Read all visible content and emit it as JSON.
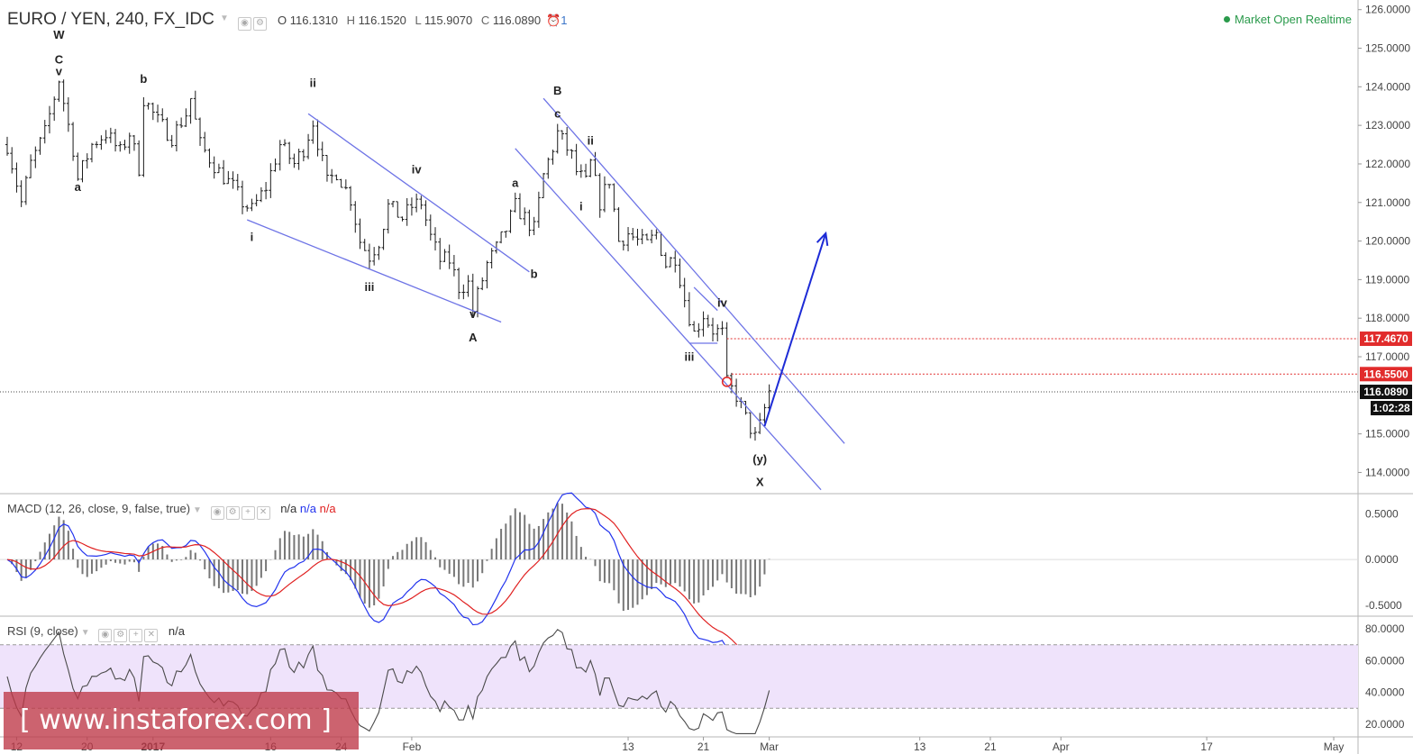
{
  "header": {
    "symbol_label": "EURO / YEN, 240, FX_IDC",
    "ohlc": {
      "o_label": "O",
      "o": "116.1310",
      "h_label": "H",
      "h": "116.1520",
      "l_label": "L",
      "l": "115.9070",
      "c_label": "C",
      "c": "116.0890"
    },
    "alerts_count": "1",
    "status": "Market Open Realtime"
  },
  "colors": {
    "candle": "#1a1a1a",
    "channel": "#6e74e6",
    "arrow": "#1d2bd6",
    "level_red": "#e12c2c",
    "macd_line": "#2233ee",
    "signal_line": "#e02020",
    "hist": "#777777",
    "rsi_line": "#4a4a4a",
    "rsi_band": "#efe3fb"
  },
  "price_axis": {
    "ticks": [
      "126.0000",
      "125.0000",
      "124.0000",
      "123.0000",
      "122.0000",
      "121.0000",
      "120.0000",
      "119.0000",
      "118.0000",
      "117.0000",
      "115.0000",
      "114.0000"
    ],
    "tick_values": [
      126,
      125,
      124,
      123,
      122,
      121,
      120,
      119,
      118,
      117,
      115,
      114
    ],
    "price_range": [
      113.45,
      126.25
    ],
    "current_price": "116.0890",
    "countdown": "1:02:28",
    "levels": [
      {
        "label": "117.4670",
        "value": 117.467
      },
      {
        "label": "116.5500",
        "value": 116.55
      }
    ]
  },
  "time_axis": {
    "labels": [
      "12",
      "20",
      "2017",
      "16",
      "24",
      "Feb",
      "13",
      "21",
      "Mar",
      "13",
      "21",
      "Apr",
      "17",
      "May"
    ],
    "bar_index": [
      2,
      17,
      31,
      56,
      71,
      86,
      132,
      148,
      162,
      194,
      209,
      224,
      255,
      282
    ]
  },
  "wave_labels": [
    {
      "text": "W",
      "bar": 11,
      "price": 125.25
    },
    {
      "text": "C",
      "bar": 11,
      "price": 124.6
    },
    {
      "text": "v",
      "bar": 11,
      "price": 124.3
    },
    {
      "text": "a",
      "bar": 15,
      "price": 121.3
    },
    {
      "text": "b",
      "bar": 29,
      "price": 124.1
    },
    {
      "text": "i",
      "bar": 52,
      "price": 120.0
    },
    {
      "text": "ii",
      "bar": 65,
      "price": 124.0
    },
    {
      "text": "iii",
      "bar": 77,
      "price": 118.7
    },
    {
      "text": "iv",
      "bar": 87,
      "price": 121.75
    },
    {
      "text": "v",
      "bar": 99,
      "price": 118.0
    },
    {
      "text": "A",
      "bar": 99,
      "price": 117.4
    },
    {
      "text": "a",
      "bar": 108,
      "price": 121.4
    },
    {
      "text": "b",
      "bar": 112,
      "price": 119.05
    },
    {
      "text": "B",
      "bar": 117,
      "price": 123.8
    },
    {
      "text": "c",
      "bar": 117,
      "price": 123.2
    },
    {
      "text": "ii",
      "bar": 124,
      "price": 122.5
    },
    {
      "text": "i",
      "bar": 122,
      "price": 120.8
    },
    {
      "text": "iii",
      "bar": 145,
      "price": 116.9
    },
    {
      "text": "iv",
      "bar": 152,
      "price": 118.3
    },
    {
      "text": "(y)",
      "bar": 160,
      "price": 114.25
    },
    {
      "text": "X",
      "bar": 160,
      "price": 113.65
    }
  ],
  "trend_lines": [
    {
      "from": [
        51,
        120.55
      ],
      "to": [
        105,
        117.9
      ]
    },
    {
      "from": [
        64,
        123.3
      ],
      "to": [
        111,
        119.2
      ]
    },
    {
      "from": [
        108,
        122.4
      ],
      "to": [
        173,
        113.55
      ]
    },
    {
      "from": [
        114,
        123.7
      ],
      "to": [
        178,
        114.75
      ]
    },
    {
      "from": [
        145,
        117.35
      ],
      "to": [
        151,
        117.35
      ]
    },
    {
      "from": [
        146,
        118.8
      ],
      "to": [
        151,
        118.2
      ]
    }
  ],
  "forecast_arrow": {
    "from": [
      161,
      115.2
    ],
    "to": [
      174,
      120.2
    ]
  },
  "circle_marker": {
    "bar": 153,
    "price": 116.35
  },
  "macd": {
    "title_label": "MACD (12, 26, close, 9, false, true)",
    "values": [
      "n/a",
      "n/a",
      "n/a"
    ],
    "ticks": [
      "0.5000",
      "0.0000",
      "-0.5000"
    ],
    "tick_values": [
      0.5,
      0,
      -0.5
    ],
    "range": [
      -0.62,
      0.72
    ]
  },
  "rsi": {
    "title_label": "RSI (9, close)",
    "value": "n/a",
    "ticks": [
      "80.0000",
      "60.0000",
      "40.0000",
      "20.0000"
    ],
    "tick_values": [
      80,
      60,
      40,
      20
    ],
    "range": [
      12,
      88
    ],
    "band": [
      30,
      70
    ]
  },
  "watermark": "[ www.instaforex.com ]",
  "chart_data": {
    "type": "candlestick",
    "title": "EURO / YEN, 240, FX_IDC",
    "ylim": [
      113.45,
      126.25
    ],
    "close_path": [
      [
        0,
        122.5
      ],
      [
        3,
        121.0
      ],
      [
        5,
        122.0
      ],
      [
        8,
        122.8
      ],
      [
        11,
        124.2
      ],
      [
        14,
        122.4
      ],
      [
        15,
        121.6
      ],
      [
        18,
        122.5
      ],
      [
        21,
        122.8
      ],
      [
        24,
        122.3
      ],
      [
        26,
        122.8
      ],
      [
        28,
        121.9
      ],
      [
        29,
        123.7
      ],
      [
        32,
        123.1
      ],
      [
        35,
        122.7
      ],
      [
        38,
        123.3
      ],
      [
        39,
        123.7
      ],
      [
        41,
        122.5
      ],
      [
        45,
        121.8
      ],
      [
        48,
        121.4
      ],
      [
        50,
        121.0
      ],
      [
        52,
        120.8
      ],
      [
        55,
        121.4
      ],
      [
        58,
        122.5
      ],
      [
        61,
        122.0
      ],
      [
        63,
        122.4
      ],
      [
        65,
        123.1
      ],
      [
        68,
        121.5
      ],
      [
        70,
        121.8
      ],
      [
        73,
        121.1
      ],
      [
        75,
        120.0
      ],
      [
        77,
        119.6
      ],
      [
        79,
        120.0
      ],
      [
        81,
        120.9
      ],
      [
        84,
        120.6
      ],
      [
        86,
        120.9
      ],
      [
        88,
        121.0
      ],
      [
        90,
        120.1
      ],
      [
        92,
        119.5
      ],
      [
        94,
        119.5
      ],
      [
        96,
        118.8
      ],
      [
        98,
        118.9
      ],
      [
        99,
        118.2
      ],
      [
        102,
        119.4
      ],
      [
        104,
        119.8
      ],
      [
        106,
        120.3
      ],
      [
        108,
        120.9
      ],
      [
        110,
        120.6
      ],
      [
        112,
        120.3
      ],
      [
        114,
        121.7
      ],
      [
        117,
        122.8
      ],
      [
        120,
        122.2
      ],
      [
        121,
        121.8
      ],
      [
        123,
        121.5
      ],
      [
        124,
        122.0
      ],
      [
        126,
        121.0
      ],
      [
        128,
        121.6
      ],
      [
        130,
        120.0
      ],
      [
        132,
        120.2
      ],
      [
        134,
        120.0
      ],
      [
        136,
        119.9
      ],
      [
        138,
        120.2
      ],
      [
        140,
        119.4
      ],
      [
        142,
        119.6
      ],
      [
        144,
        118.5
      ],
      [
        146,
        117.6
      ],
      [
        148,
        118.1
      ],
      [
        150,
        117.7
      ],
      [
        152,
        117.6
      ],
      [
        153,
        116.3
      ],
      [
        155,
        116.0
      ],
      [
        157,
        115.4
      ],
      [
        159,
        114.9
      ],
      [
        160,
        115.2
      ],
      [
        162,
        116.1
      ]
    ]
  }
}
